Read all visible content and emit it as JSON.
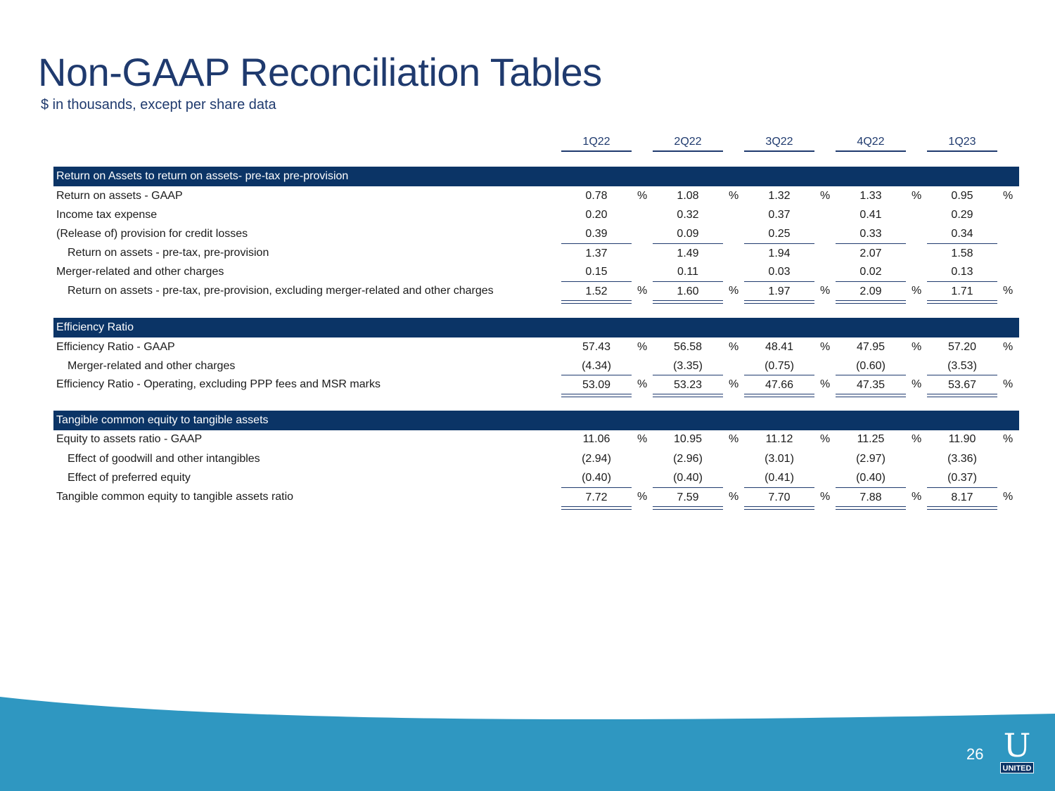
{
  "title": "Non-GAAP Reconciliation Tables",
  "subtitle": "$ in thousands, except per share data",
  "quarters": [
    "1Q22",
    "2Q22",
    "3Q22",
    "4Q22",
    "1Q23"
  ],
  "pct_sign": "%",
  "sections": [
    {
      "heading": "Return on Assets to return on assets- pre-tax pre-provision",
      "rows": [
        {
          "label": "Return on assets - GAAP",
          "values": [
            "0.78",
            "1.08",
            "1.32",
            "1.33",
            "0.95"
          ]
        },
        {
          "label": "Income tax expense",
          "values": [
            "0.20",
            "0.32",
            "0.37",
            "0.41",
            "0.29"
          ]
        },
        {
          "label": "(Release of) provision for credit losses",
          "values": [
            "0.39",
            "0.09",
            "0.25",
            "0.33",
            "0.34"
          ]
        },
        {
          "label": "Return on assets - pre-tax, pre-provision",
          "values": [
            "1.37",
            "1.49",
            "1.94",
            "2.07",
            "1.58"
          ]
        },
        {
          "label": "Merger-related and other charges",
          "values": [
            "0.15",
            "0.11",
            "0.03",
            "0.02",
            "0.13"
          ]
        },
        {
          "label": "Return on assets - pre-tax, pre-provision, excluding merger-related and other charges",
          "values": [
            "1.52",
            "1.60",
            "1.97",
            "2.09",
            "1.71"
          ]
        }
      ]
    },
    {
      "heading": "Efficiency Ratio",
      "rows": [
        {
          "label": "Efficiency Ratio - GAAP",
          "values": [
            "57.43",
            "56.58",
            "48.41",
            "47.95",
            "57.20"
          ]
        },
        {
          "label": "Merger-related and other charges",
          "values": [
            "(4.34)",
            "(3.35)",
            "(0.75)",
            "(0.60)",
            "(3.53)"
          ]
        },
        {
          "label": "Efficiency Ratio - Operating, excluding PPP fees and MSR marks",
          "values": [
            "53.09",
            "53.23",
            "47.66",
            "47.35",
            "53.67"
          ]
        }
      ]
    },
    {
      "heading": "Tangible common equity to tangible assets",
      "rows": [
        {
          "label": "Equity to assets ratio - GAAP",
          "values": [
            "11.06",
            "10.95",
            "11.12",
            "11.25",
            "11.90"
          ]
        },
        {
          "label": "Effect of goodwill and other intangibles",
          "values": [
            "(2.94)",
            "(2.96)",
            "(3.01)",
            "(2.97)",
            "(3.36)"
          ]
        },
        {
          "label": "Effect of preferred equity",
          "values": [
            "(0.40)",
            "(0.40)",
            "(0.41)",
            "(0.40)",
            "(0.37)"
          ]
        },
        {
          "label": "Tangible common equity to tangible assets ratio",
          "values": [
            "7.72",
            "7.59",
            "7.70",
            "7.88",
            "8.17"
          ]
        }
      ]
    }
  ],
  "page_number": "26",
  "logo": {
    "letter": "U",
    "text": "UNITED"
  },
  "colors": {
    "navy": "#0b3466",
    "title_blue": "#1f3a6e",
    "wave_blue": "#2f97c1"
  }
}
